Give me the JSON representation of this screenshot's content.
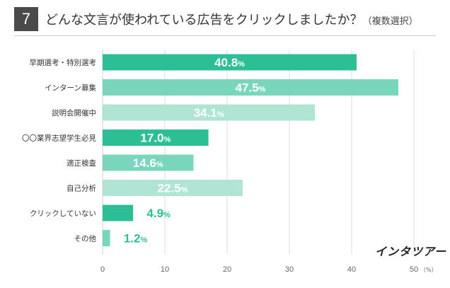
{
  "header": {
    "number": "7",
    "title": "どんな文言が使われている広告をクリックしましたか？",
    "note": "（複数選択）"
  },
  "brand": {
    "name": "インタツアー"
  },
  "chart_data": {
    "type": "bar",
    "orientation": "horizontal",
    "categories": [
      "早期選考・特別選考",
      "インターン募集",
      "説明会開催中",
      "〇〇業界志望学生必見",
      "適正検査",
      "自己分析",
      "クリックしていない",
      "その他"
    ],
    "values": [
      40.8,
      47.5,
      34.1,
      17.0,
      14.6,
      22.5,
      4.9,
      1.2
    ],
    "value_labels": [
      "40.8",
      "47.5",
      "34.1",
      "17.0",
      "14.6",
      "22.5",
      "4.9",
      "1.2"
    ],
    "value_unit": "%",
    "xlim": [
      0,
      50
    ],
    "xticks": [
      "0",
      "10",
      "20",
      "30",
      "40",
      "50"
    ],
    "xunit": "（%）",
    "grid": true,
    "colors": {
      "bars": [
        "#2cbf96",
        "#79d6bc",
        "#b0e5d6",
        "#2cbf96",
        "#79d6bc",
        "#b0e5d6",
        "#2cbf96",
        "#79d6bc"
      ],
      "outside_label": "#2cbf96",
      "grid": "#dddddd"
    }
  }
}
